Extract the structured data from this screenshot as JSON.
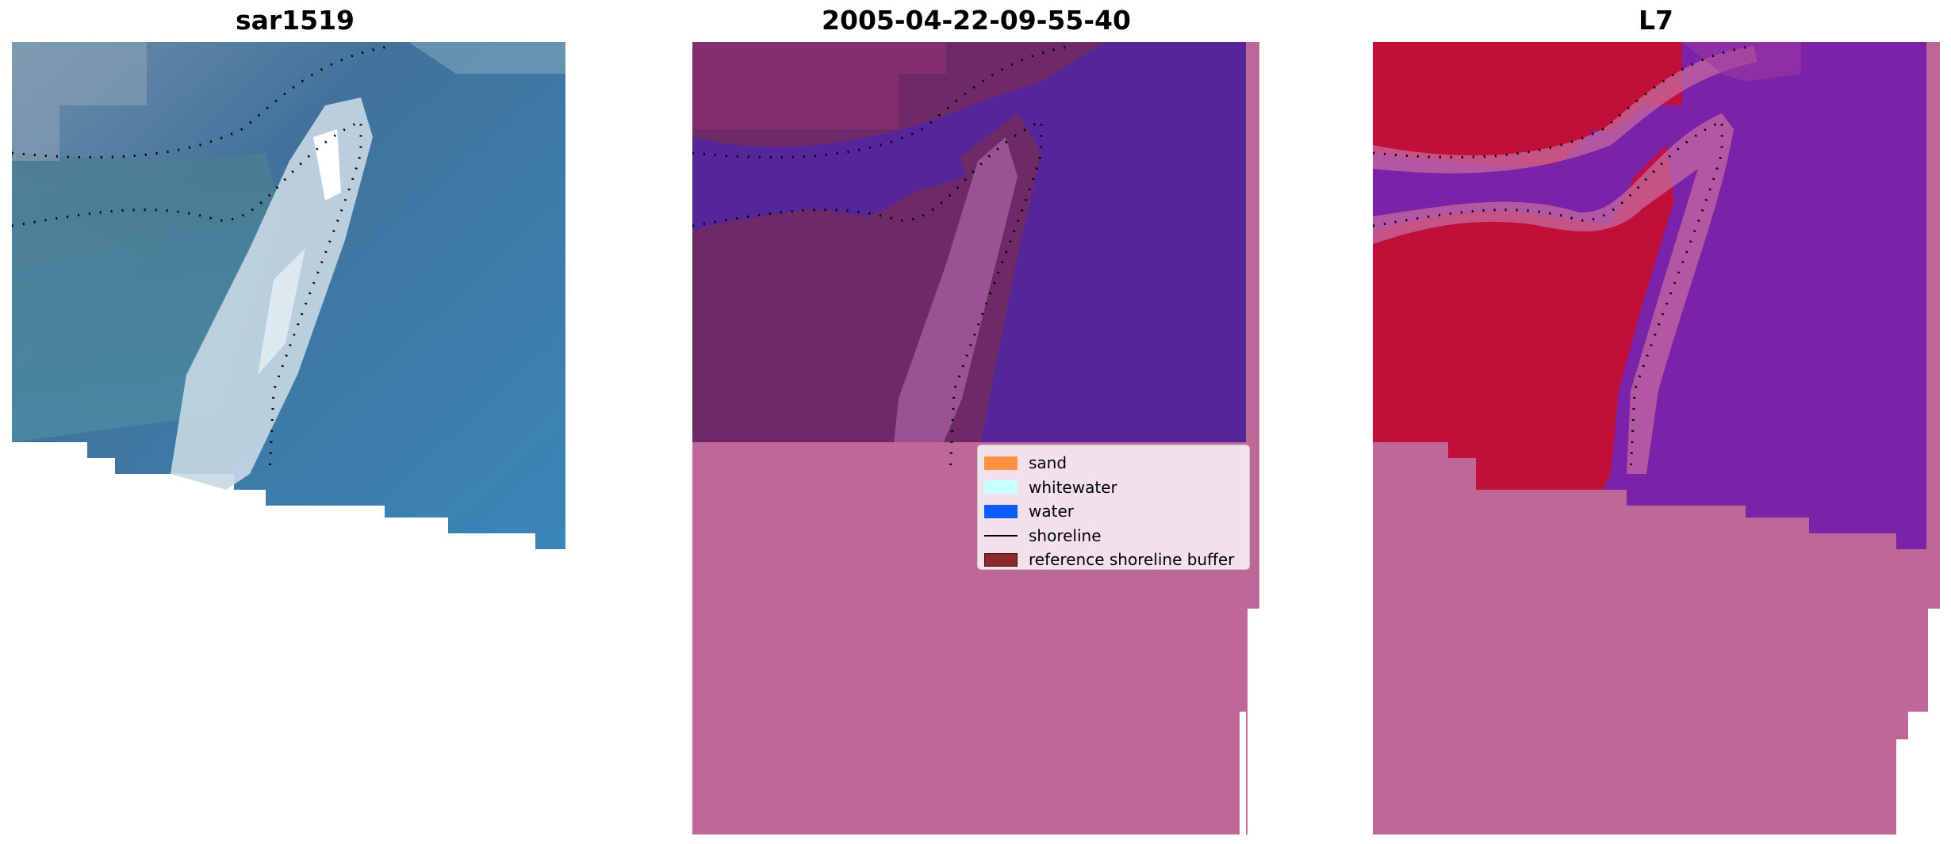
{
  "panels": [
    {
      "title": "sar1519"
    },
    {
      "title": "2005-04-22-09-55-40"
    },
    {
      "title": "L7"
    }
  ],
  "legend": {
    "items": [
      {
        "label": "sand",
        "color": "#ff9040",
        "kind": "patch"
      },
      {
        "label": "whitewater",
        "color": "#c8ffff",
        "kind": "patch"
      },
      {
        "label": "water",
        "color": "#0a5cff",
        "kind": "patch"
      },
      {
        "label": "shoreline",
        "color": "#000000",
        "kind": "line"
      },
      {
        "label": "reference shoreline buffer",
        "color": "#8a2a2a",
        "kind": "patch"
      }
    ]
  },
  "colors": {
    "rgb_water": "#3a7fb0",
    "rgb_dark_water": "#3e6a8e",
    "rgb_whitewater": "#e8f4f8",
    "mask_overlay": "#bd6896",
    "classified_water": "#55259a",
    "classified_land": "#6e2a66",
    "index_positive": "#c0103a",
    "index_negative": "#7a22a8"
  }
}
